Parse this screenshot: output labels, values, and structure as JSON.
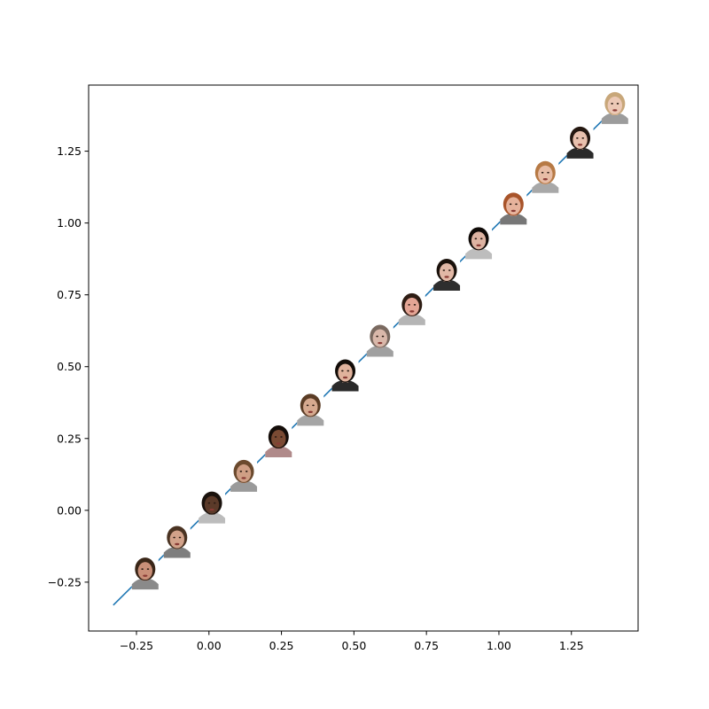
{
  "chart_data": {
    "type": "line",
    "title": "",
    "xlabel": "",
    "ylabel": "",
    "xlim": [
      -0.415,
      1.48
    ],
    "ylim": [
      -0.42,
      1.48
    ],
    "grid": false,
    "line_color": "#1f77b4",
    "line": {
      "x": [
        -0.33,
        1.43
      ],
      "y": [
        -0.33,
        1.43
      ]
    },
    "x_ticks": [
      {
        "value": -0.25,
        "label": "−0.25"
      },
      {
        "value": 0.0,
        "label": "0.00"
      },
      {
        "value": 0.25,
        "label": "0.25"
      },
      {
        "value": 0.5,
        "label": "0.50"
      },
      {
        "value": 0.75,
        "label": "0.75"
      },
      {
        "value": 1.0,
        "label": "1.00"
      },
      {
        "value": 1.25,
        "label": "1.25"
      }
    ],
    "y_ticks": [
      {
        "value": -0.25,
        "label": "−0.25"
      },
      {
        "value": 0.0,
        "label": "0.00"
      },
      {
        "value": 0.25,
        "label": "0.25"
      },
      {
        "value": 0.5,
        "label": "0.50"
      },
      {
        "value": 0.75,
        "label": "0.75"
      },
      {
        "value": 1.0,
        "label": "1.00"
      },
      {
        "value": 1.25,
        "label": "1.25"
      }
    ],
    "face_markers": [
      {
        "x": -0.22,
        "y": -0.22,
        "hair": "#3a2618",
        "skin": "#c98f78",
        "shirt": "#8a8a8a"
      },
      {
        "x": -0.11,
        "y": -0.11,
        "hair": "#4a3322",
        "skin": "#d2a28a",
        "shirt": "#7e7e7e"
      },
      {
        "x": 0.01,
        "y": 0.01,
        "hair": "#1a120d",
        "skin": "#5b3a29",
        "shirt": "#bcbcbc"
      },
      {
        "x": 0.12,
        "y": 0.12,
        "hair": "#6b4a2e",
        "skin": "#cf9f85",
        "shirt": "#9a9a9a"
      },
      {
        "x": 0.24,
        "y": 0.24,
        "hair": "#140d09",
        "skin": "#7a4a33",
        "shirt": "#b08a8a"
      },
      {
        "x": 0.35,
        "y": 0.35,
        "hair": "#5a3c25",
        "skin": "#d6a98f",
        "shirt": "#a5a5a5"
      },
      {
        "x": 0.47,
        "y": 0.47,
        "hair": "#120c08",
        "skin": "#e0b29c",
        "shirt": "#2a2a2a"
      },
      {
        "x": 0.59,
        "y": 0.59,
        "hair": "#7a6a60",
        "skin": "#d9b8aa",
        "shirt": "#a0a0a0"
      },
      {
        "x": 0.7,
        "y": 0.7,
        "hair": "#2e1d14",
        "skin": "#e4a595",
        "shirt": "#b5b5b5"
      },
      {
        "x": 0.82,
        "y": 0.82,
        "hair": "#1a110b",
        "skin": "#e2b8a6",
        "shirt": "#2e2e2e"
      },
      {
        "x": 0.93,
        "y": 0.93,
        "hair": "#0f0a07",
        "skin": "#ddb3a2",
        "shirt": "#bdbdbd"
      },
      {
        "x": 1.05,
        "y": 1.05,
        "hair": "#a8542a",
        "skin": "#e6b39c",
        "shirt": "#777777"
      },
      {
        "x": 1.16,
        "y": 1.16,
        "hair": "#b77a45",
        "skin": "#e8bda6",
        "shirt": "#a8a8a8"
      },
      {
        "x": 1.28,
        "y": 1.28,
        "hair": "#241710",
        "skin": "#e8c0ad",
        "shirt": "#2a2a2a"
      },
      {
        "x": 1.4,
        "y": 1.4,
        "hair": "#c8a77a",
        "skin": "#ecc9b6",
        "shirt": "#9c9c9c"
      }
    ]
  }
}
